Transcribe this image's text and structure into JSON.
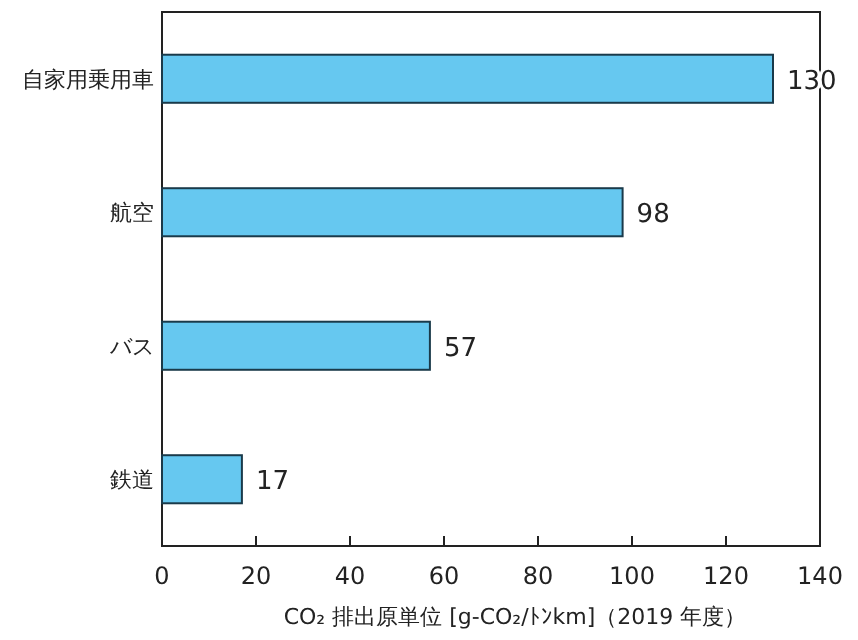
{
  "chart_data": {
    "type": "bar",
    "orientation": "horizontal",
    "categories": [
      "自家用乗用車",
      "航空",
      "バス",
      "鉄道"
    ],
    "values": [
      130,
      98,
      57,
      17
    ],
    "color": "#66c8f0",
    "data_labels": true,
    "xlim": [
      0,
      140
    ],
    "xticks": [
      0,
      20,
      40,
      60,
      80,
      100,
      120,
      140
    ],
    "xlabel": "CO₂ 排出原単位 [g-CO₂/ﾄﾝkm]（2019 年度）"
  }
}
